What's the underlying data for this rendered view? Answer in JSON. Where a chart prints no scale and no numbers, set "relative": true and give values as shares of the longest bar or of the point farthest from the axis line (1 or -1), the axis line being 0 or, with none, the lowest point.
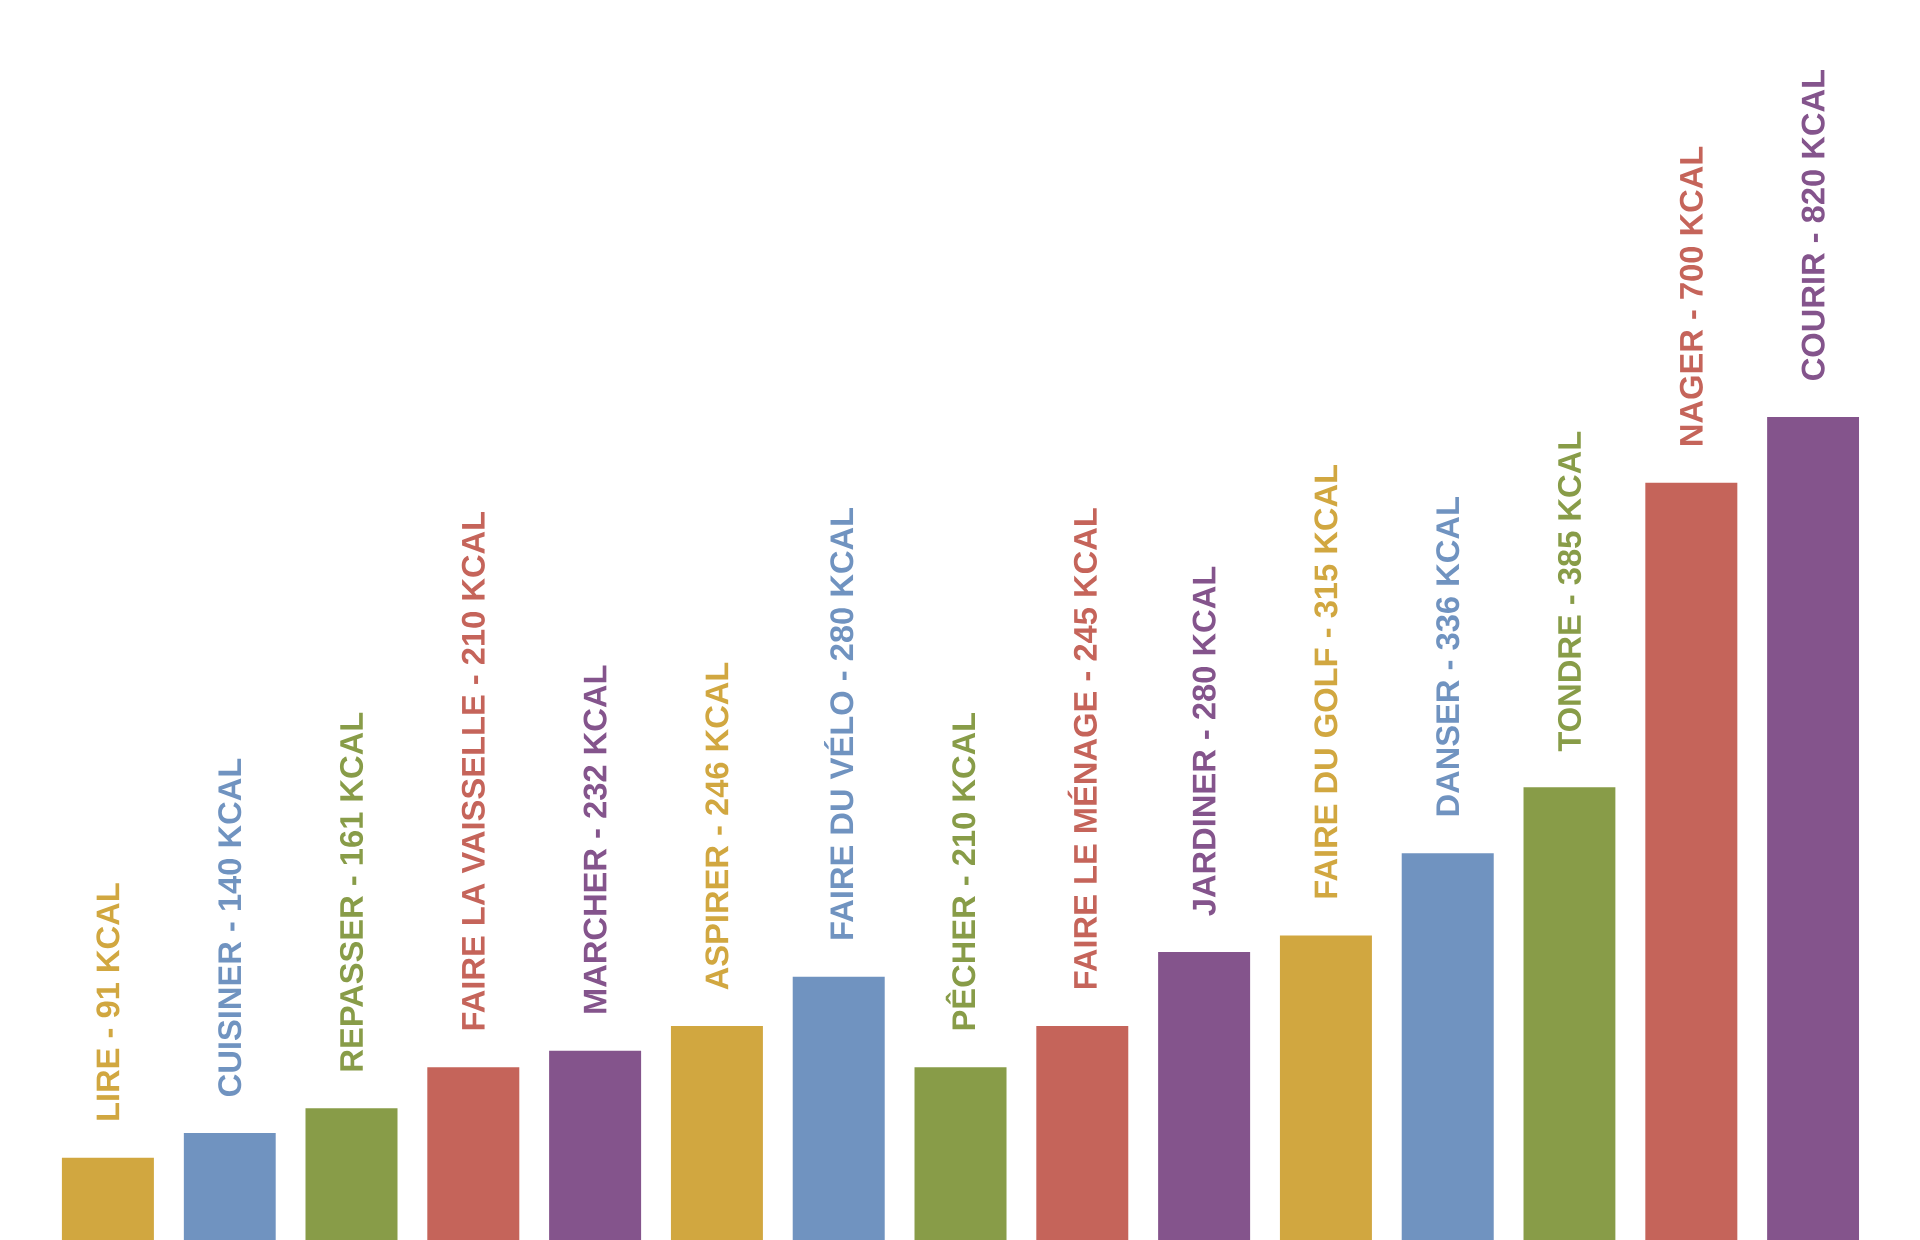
{
  "chart_data": {
    "type": "bar",
    "relative": true,
    "categories": [
      null,
      null,
      null,
      null,
      null,
      null,
      null,
      null,
      null,
      null,
      null,
      null,
      null,
      null,
      null
    ],
    "values": [
      0.1,
      0.13,
      0.16,
      0.21,
      0.23,
      0.26,
      0.32,
      0.21,
      0.26,
      0.35,
      0.37,
      0.47,
      0.55,
      0.92,
      1
    ],
    "annotations": [
      "LIRE - 91 KCAL",
      "CUISINER - 140 KCAL",
      "REPASSER - 161 KCAL",
      "FAIRE LA VAISSELLE - 210 KCAL",
      "MARCHER - 232 KCAL",
      "ASPIRER - 246 KCAL",
      "FAIRE DU VÉLO - 280 KCAL",
      "PÊCHER - 210 KCAL",
      "FAIRE LE MÉNAGE - 245 KCAL",
      "JARDINER - 280 KCAL",
      "FAIRE DU GOLF - 315 KCAL",
      "DANSER - 336 KCAL",
      "TONDRE - 385 KCAL",
      "NAGER - 700 KCAL",
      "COURIR - 820 KCAL"
    ],
    "colors": [
      "#d1a740",
      "#7093c0",
      "#889c48",
      "#c5645a",
      "#84548c",
      "#d1a740",
      "#7093c0",
      "#889c48",
      "#c5645a",
      "#84548c",
      "#d1a740",
      "#7093c0",
      "#889c48",
      "#c5645a",
      "#84548c"
    ]
  }
}
